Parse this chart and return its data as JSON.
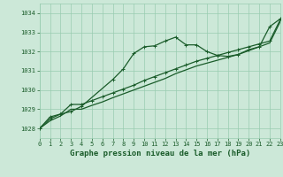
{
  "title": "Graphe pression niveau de la mer (hPa)",
  "background_color": "#cce8d8",
  "grid_color": "#99ccb0",
  "line_color": "#1a5c2a",
  "xlim": [
    0,
    23
  ],
  "ylim": [
    1027.5,
    1034.5
  ],
  "yticks": [
    1028,
    1029,
    1030,
    1031,
    1032,
    1033,
    1034
  ],
  "xticks": [
    0,
    1,
    2,
    3,
    4,
    5,
    6,
    7,
    8,
    9,
    10,
    11,
    12,
    13,
    14,
    15,
    16,
    17,
    18,
    19,
    20,
    21,
    22,
    23
  ],
  "series1_x": [
    0,
    1,
    2,
    3,
    4,
    7,
    8,
    9,
    10,
    11,
    12,
    13,
    14,
    15,
    16,
    17,
    18,
    19,
    20,
    21,
    22,
    23
  ],
  "series1_y": [
    1028.0,
    1028.6,
    1028.75,
    1028.88,
    1029.15,
    1030.55,
    1031.1,
    1031.9,
    1032.25,
    1032.3,
    1032.55,
    1032.75,
    1032.35,
    1032.35,
    1032.0,
    1031.8,
    1031.75,
    1031.85,
    1032.1,
    1032.25,
    1033.3,
    1033.7
  ],
  "series2_x": [
    0,
    1,
    2,
    3,
    4,
    5,
    6,
    7,
    8,
    9,
    10,
    11,
    12,
    13,
    14,
    15,
    16,
    17,
    18,
    19,
    20,
    21,
    22,
    23
  ],
  "series2_y": [
    1028.0,
    1028.5,
    1028.75,
    1029.25,
    1029.25,
    1029.45,
    1029.65,
    1029.85,
    1030.05,
    1030.25,
    1030.5,
    1030.7,
    1030.9,
    1031.1,
    1031.3,
    1031.5,
    1031.65,
    1031.8,
    1031.95,
    1032.1,
    1032.25,
    1032.4,
    1032.55,
    1033.65
  ],
  "series3_x": [
    0,
    1,
    2,
    3,
    4,
    5,
    6,
    7,
    8,
    9,
    10,
    11,
    12,
    13,
    14,
    15,
    16,
    17,
    18,
    19,
    20,
    21,
    22,
    23
  ],
  "series3_y": [
    1028.0,
    1028.4,
    1028.65,
    1029.0,
    1029.0,
    1029.2,
    1029.38,
    1029.6,
    1029.8,
    1030.0,
    1030.2,
    1030.4,
    1030.6,
    1030.85,
    1031.05,
    1031.25,
    1031.4,
    1031.55,
    1031.7,
    1031.85,
    1032.05,
    1032.25,
    1032.45,
    1033.55
  ],
  "marker": "+",
  "markersize": 3.5,
  "linewidth": 0.9,
  "title_fontsize": 6.5,
  "tick_fontsize": 5.0
}
